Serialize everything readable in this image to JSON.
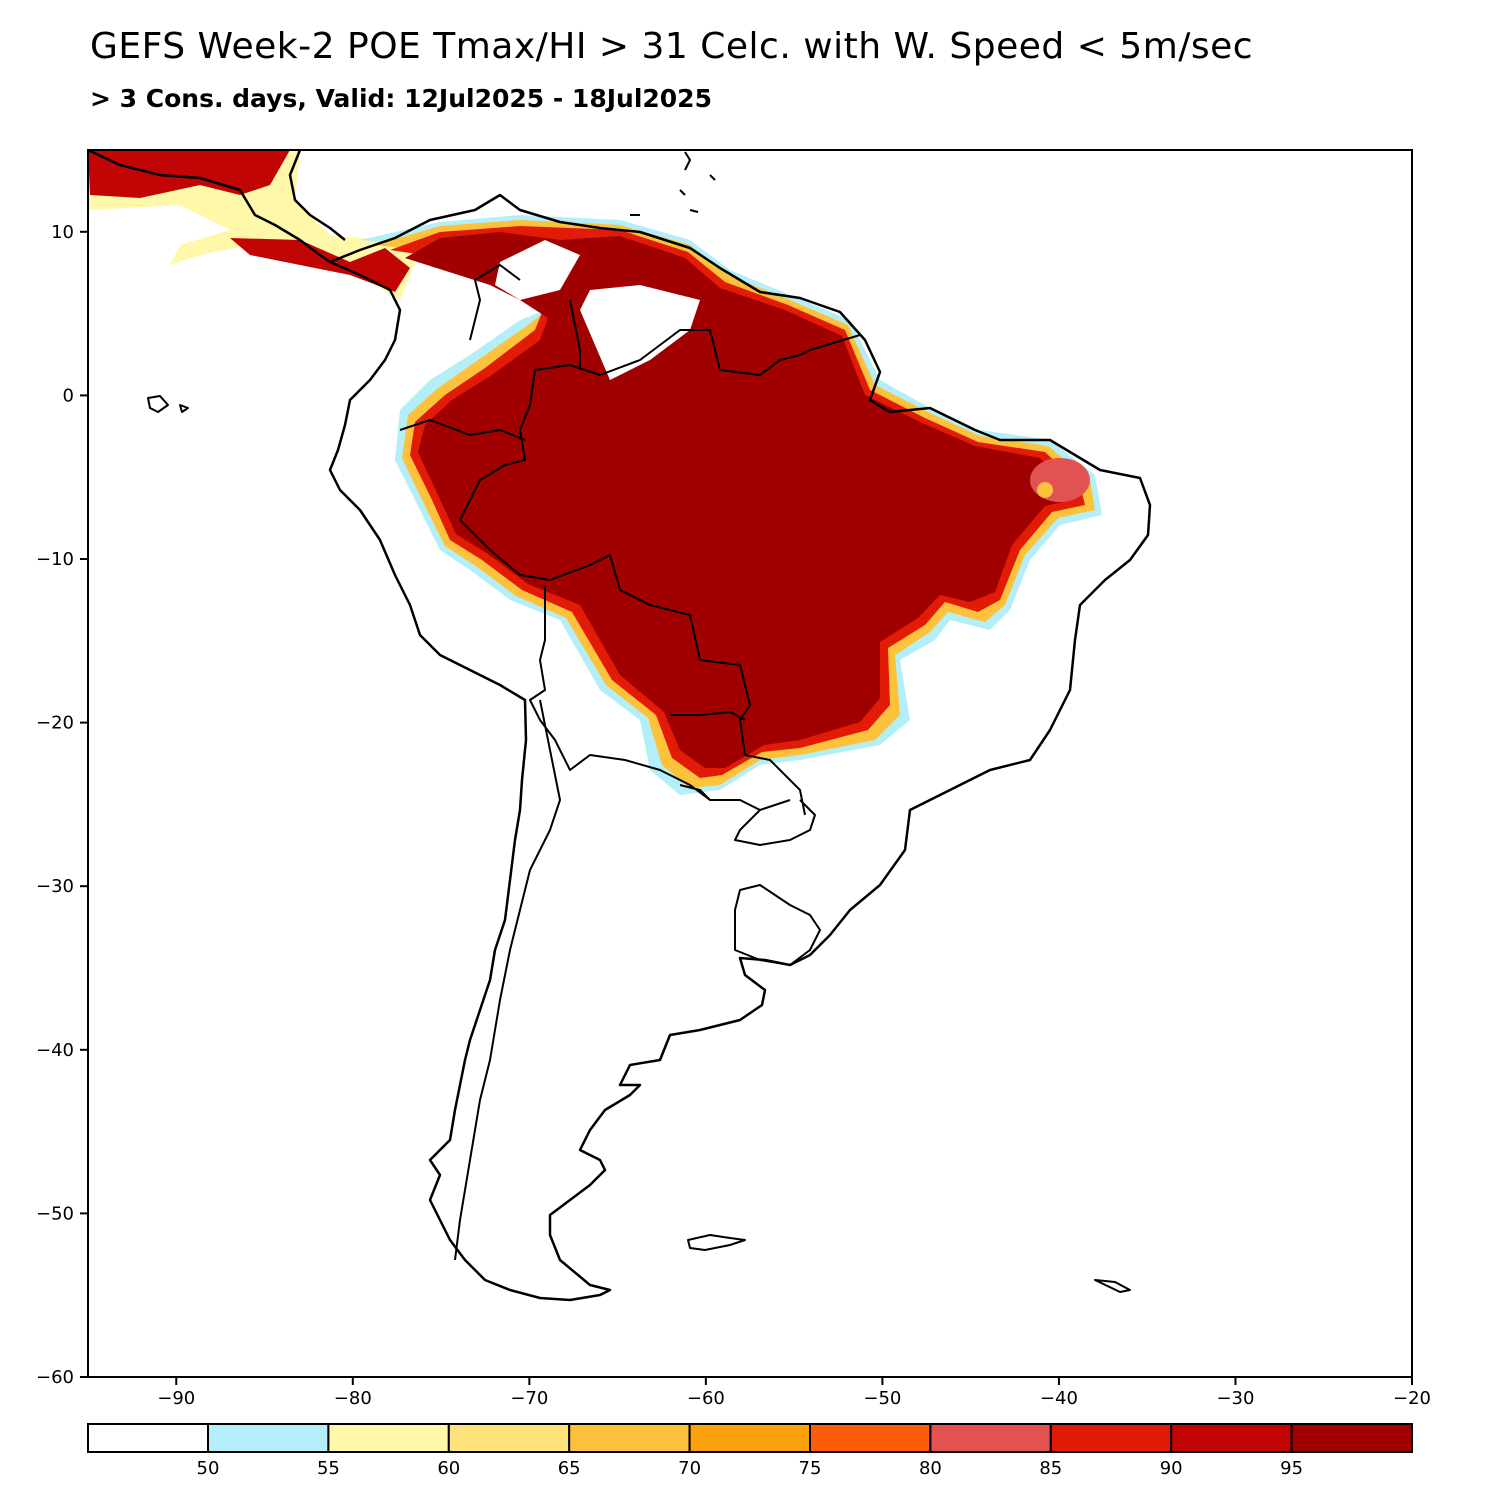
{
  "title": "GEFS Week-2 POE Tmax/HI > 31 Celc. with W. Speed < 5m/sec",
  "subtitle": "> 3 Cons. days, Valid: 12Jul2025 - 18Jul2025",
  "axes": {
    "x_ticks": [
      "−90",
      "−80",
      "−70",
      "−60",
      "−50",
      "−40",
      "−30",
      "−20"
    ],
    "y_ticks": [
      "10",
      "0",
      "−10",
      "−20",
      "−30",
      "−40",
      "−50",
      "−60"
    ]
  },
  "map": {
    "lon_range": [
      -95,
      -20
    ],
    "lat_range": [
      -60,
      15
    ],
    "region": "South America"
  },
  "legend": {
    "labels": [
      "50",
      "55",
      "60",
      "65",
      "70",
      "75",
      "80",
      "85",
      "90",
      "95"
    ],
    "colors": [
      "#ffffff",
      "#b4eef8",
      "#fff8a8",
      "#ffe27a",
      "#fcc23c",
      "#fca10c",
      "#fd5c0a",
      "#e25253",
      "#e21b07",
      "#c10404",
      "#a00000"
    ]
  }
}
